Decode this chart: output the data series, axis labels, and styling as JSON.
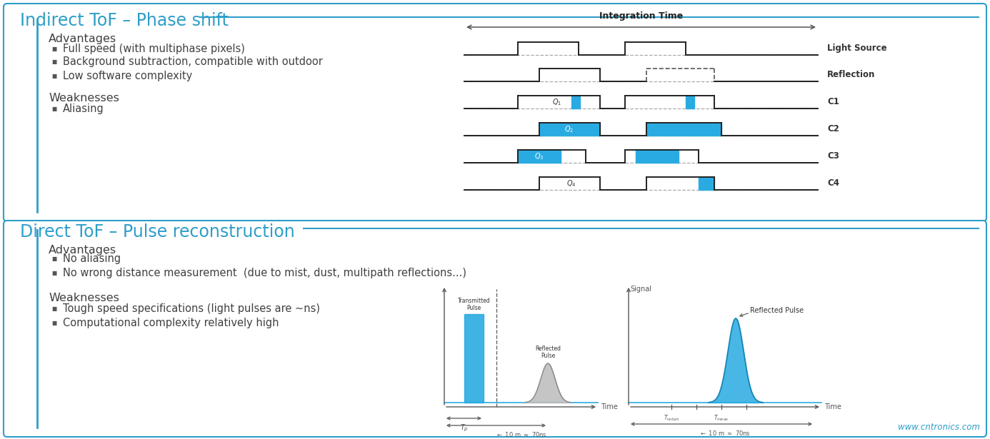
{
  "bg_color": "#ffffff",
  "blue_line_color": "#2E9EC9",
  "title1": "Indirect ToF – Phase shift",
  "title2": "Direct ToF – Pulse reconstruction",
  "adv1_title": "Advantages",
  "adv1_items": [
    "Full speed (with multiphase pixels)",
    "Background subtraction, compatible with outdoor",
    "Low software complexity"
  ],
  "weak1_title": "Weaknesses",
  "weak1_items": [
    "Aliasing"
  ],
  "adv2_title": "Advantages",
  "adv2_items": [
    "No aliasing",
    "No wrong distance measurement  (due to mist, dust, multipath reflections...)"
  ],
  "weak2_title": "Weaknesses",
  "weak2_items": [
    "Tough speed specifications (light pulses are ~ns)",
    "Computational complexity relatively high"
  ],
  "text_color_dark": "#404040",
  "cyan_fill": "#29ABE2",
  "footer_text": "www.cntronics.com",
  "footer_color": "#2E9EC9"
}
